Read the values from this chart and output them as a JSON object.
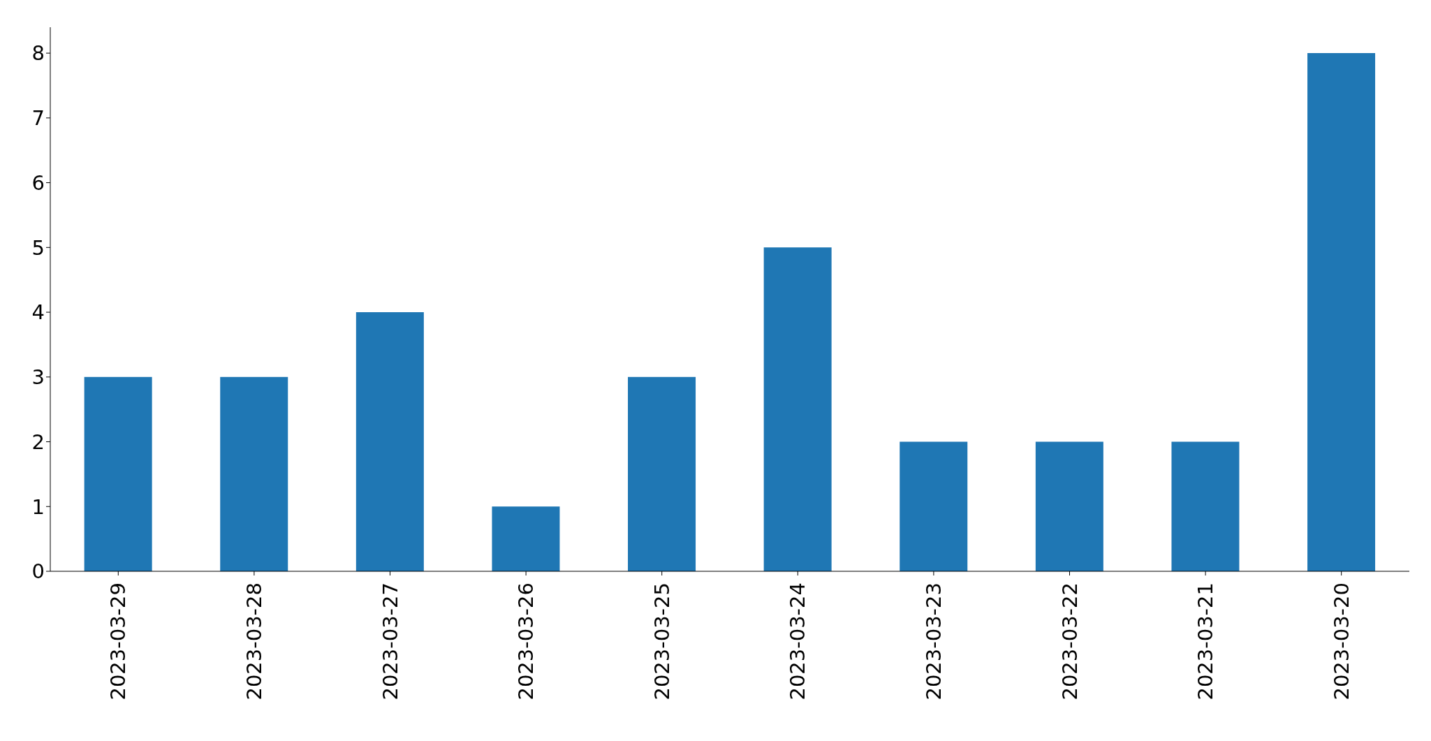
{
  "chart_data": {
    "type": "bar",
    "categories": [
      "2023-03-29",
      "2023-03-28",
      "2023-03-27",
      "2023-03-26",
      "2023-03-25",
      "2023-03-24",
      "2023-03-23",
      "2023-03-22",
      "2023-03-21",
      "2023-03-20"
    ],
    "values": [
      3,
      3,
      4,
      1,
      3,
      5,
      2,
      2,
      2,
      8
    ],
    "color": "#1f77b4",
    "ylim": [
      0,
      8.4
    ],
    "yticks": [
      0,
      1,
      2,
      3,
      4,
      5,
      6,
      7,
      8
    ],
    "grid": false,
    "legend": false
  }
}
